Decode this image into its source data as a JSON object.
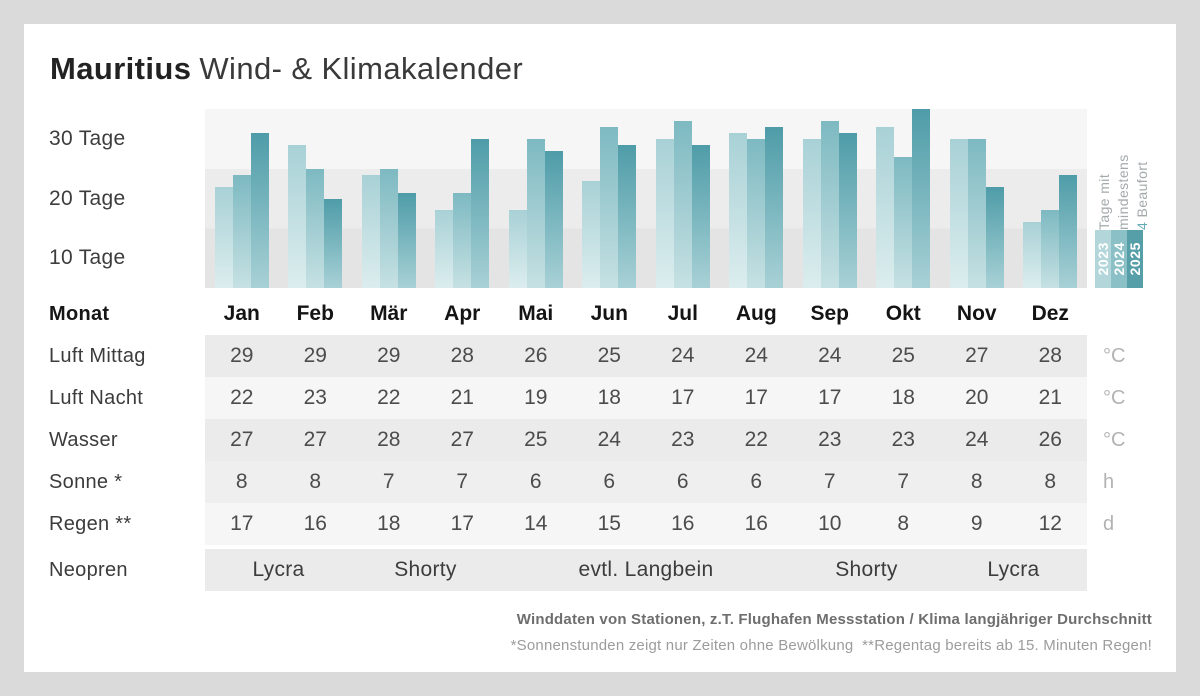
{
  "title": {
    "destination": "Mauritius",
    "rest": "Wind- & Klimakalender"
  },
  "chart_data": {
    "type": "bar",
    "title": "Tage mit mindestens 4 Beaufort",
    "legend_title_lines": [
      "Tage mit",
      "mindestens",
      "4 Beaufort"
    ],
    "legend_accent": "4",
    "legend_accent_color": "#64abb5",
    "y_ticks": [
      "30 Tage",
      "20 Tage",
      "10 Tage"
    ],
    "ylabel": "Tage",
    "ylim": [
      0,
      30
    ],
    "grid": "horizontal-bands",
    "legend_position": "right-rotated",
    "categories": [
      "Jan",
      "Feb",
      "Mär",
      "Apr",
      "Mai",
      "Jun",
      "Jul",
      "Aug",
      "Sep",
      "Okt",
      "Nov",
      "Dez"
    ],
    "series": [
      {
        "name": "2023",
        "chip_color": "#b2d6da",
        "bar_top": "#a8d1d6",
        "bar_bottom": "#dcedee",
        "values": [
          17,
          24,
          19,
          13,
          13,
          18,
          25,
          26,
          25,
          27,
          25,
          11
        ]
      },
      {
        "name": "2024",
        "chip_color": "#8ac0c6",
        "bar_top": "#7db9c1",
        "bar_bottom": "#c6e1e3",
        "values": [
          19,
          20,
          20,
          16,
          25,
          27,
          28,
          25,
          28,
          22,
          25,
          13
        ]
      },
      {
        "name": "2025",
        "chip_color": "#569fa9",
        "bar_top": "#4e9ca8",
        "bar_bottom": "#a8d1d6",
        "values": [
          26,
          15,
          16,
          25,
          23,
          24,
          24,
          27,
          26,
          30,
          17,
          19
        ]
      }
    ]
  },
  "table": {
    "header_label": "Monat",
    "months": [
      "Jan",
      "Feb",
      "Mär",
      "Apr",
      "Mai",
      "Jun",
      "Jul",
      "Aug",
      "Sep",
      "Okt",
      "Nov",
      "Dez"
    ],
    "rows": [
      {
        "label": "Luft Mittag",
        "unit": "°C",
        "values": [
          29,
          29,
          29,
          28,
          26,
          25,
          24,
          24,
          24,
          25,
          27,
          28
        ]
      },
      {
        "label": "Luft Nacht",
        "unit": "°C",
        "values": [
          22,
          23,
          22,
          21,
          19,
          18,
          17,
          17,
          17,
          18,
          20,
          21
        ]
      },
      {
        "label": "Wasser",
        "unit": "°C",
        "values": [
          27,
          27,
          28,
          27,
          25,
          24,
          23,
          22,
          23,
          23,
          24,
          26
        ]
      },
      {
        "label": "Sonne *",
        "unit": "h",
        "values": [
          8,
          8,
          7,
          7,
          6,
          6,
          6,
          6,
          7,
          7,
          8,
          8
        ]
      },
      {
        "label": "Regen **",
        "unit": "d",
        "values": [
          17,
          16,
          18,
          17,
          14,
          15,
          16,
          16,
          10,
          8,
          9,
          12
        ]
      }
    ],
    "neopren_label": "Neopren",
    "neopren_segments": [
      {
        "label": "Lycra",
        "months": 2
      },
      {
        "label": "Shorty",
        "months": 2
      },
      {
        "label": "evtl. Langbein",
        "months": 4
      },
      {
        "label": "Shorty",
        "months": 2
      },
      {
        "label": "Lycra",
        "months": 2
      }
    ]
  },
  "footer": {
    "line1": "Winddaten von Stationen, z.T. Flughafen Messstation / Klima langjähriger Durchschnitt",
    "line2": "*Sonnenstunden zeigt nur Zeiten ohne Bewölkung  **Regentag bereits ab 15. Minuten Regen!"
  }
}
